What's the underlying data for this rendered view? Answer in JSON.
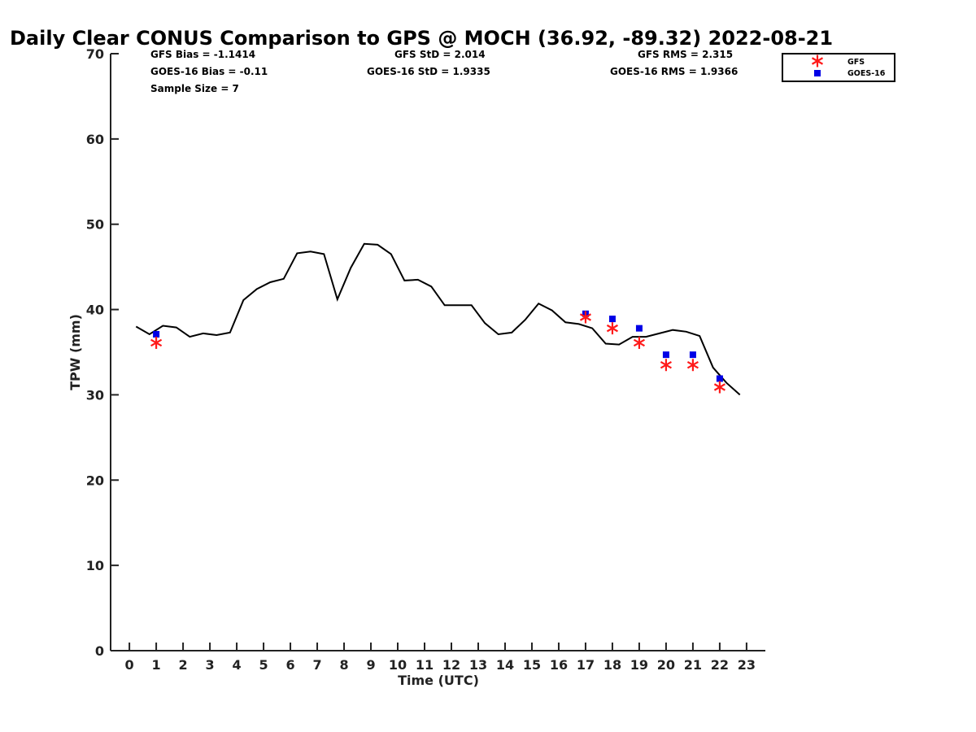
{
  "chart_data": {
    "type": "line",
    "title": "Daily Clear CONUS Comparison to GPS @ MOCH (36.92, -89.32) 2022-08-21",
    "xlabel": "Time (UTC)",
    "ylabel": "TPW (mm)",
    "xlim": [
      -0.7,
      23.7
    ],
    "ylim": [
      0,
      70
    ],
    "xticks": [
      "0",
      "1",
      "2",
      "3",
      "4",
      "5",
      "6",
      "7",
      "8",
      "9",
      "10",
      "11",
      "12",
      "13",
      "14",
      "15",
      "16",
      "17",
      "18",
      "19",
      "20",
      "21",
      "22",
      "23"
    ],
    "yticks": [
      "0",
      "10",
      "20",
      "30",
      "40",
      "50",
      "60",
      "70"
    ],
    "grid": false,
    "legend_position": "top-right",
    "stats": {
      "gfs_bias": "GFS Bias = -1.1414",
      "goes_bias": "GOES-16 Bias = -0.11",
      "sample_size": "Sample Size = 7",
      "gfs_std": "GFS StD = 2.014",
      "goes_std": "GOES-16 StD = 1.9335",
      "gfs_rms": "GFS RMS = 2.315",
      "goes_rms": "GOES-16 RMS = 1.9366"
    },
    "series": [
      {
        "color": "#000000",
        "marker": "line",
        "points": [
          [
            0.25,
            38.0
          ],
          [
            0.75,
            37.1
          ],
          [
            1.25,
            38.1
          ],
          [
            1.75,
            37.9
          ],
          [
            2.25,
            36.8
          ],
          [
            2.75,
            37.2
          ],
          [
            3.25,
            37.0
          ],
          [
            3.75,
            37.3
          ],
          [
            4.25,
            41.1
          ],
          [
            4.75,
            42.4
          ],
          [
            5.25,
            43.2
          ],
          [
            5.75,
            43.6
          ],
          [
            6.25,
            46.6
          ],
          [
            6.75,
            46.8
          ],
          [
            7.25,
            46.5
          ],
          [
            7.75,
            41.2
          ],
          [
            8.25,
            44.9
          ],
          [
            8.75,
            47.7
          ],
          [
            9.25,
            47.6
          ],
          [
            9.75,
            46.5
          ],
          [
            10.25,
            43.4
          ],
          [
            10.75,
            43.5
          ],
          [
            11.25,
            42.7
          ],
          [
            11.75,
            40.5
          ],
          [
            12.25,
            40.5
          ],
          [
            12.75,
            40.5
          ],
          [
            13.25,
            38.4
          ],
          [
            13.75,
            37.1
          ],
          [
            14.25,
            37.3
          ],
          [
            14.75,
            38.8
          ],
          [
            15.25,
            40.7
          ],
          [
            15.75,
            39.9
          ],
          [
            16.25,
            38.5
          ],
          [
            16.75,
            38.3
          ],
          [
            17.25,
            37.8
          ],
          [
            17.75,
            36.0
          ],
          [
            18.25,
            35.9
          ],
          [
            18.75,
            36.8
          ],
          [
            19.25,
            36.8
          ],
          [
            19.75,
            37.2
          ],
          [
            20.25,
            37.6
          ],
          [
            20.75,
            37.4
          ],
          [
            21.25,
            36.9
          ],
          [
            21.75,
            33.2
          ],
          [
            22.25,
            31.4
          ],
          [
            22.75,
            30.0
          ]
        ]
      },
      {
        "name": "GFS",
        "color": "#ff1a1a",
        "marker": "asterisk",
        "points": [
          [
            1,
            36.1
          ],
          [
            17,
            39.1
          ],
          [
            18,
            37.8
          ],
          [
            19,
            36.1
          ],
          [
            20,
            33.5
          ],
          [
            21,
            33.5
          ],
          [
            22,
            30.9
          ]
        ]
      },
      {
        "name": "GOES-16",
        "color": "#0000e6",
        "marker": "square",
        "points": [
          [
            1,
            37.1
          ],
          [
            17,
            39.5
          ],
          [
            18,
            38.9
          ],
          [
            19,
            37.8
          ],
          [
            20,
            34.7
          ],
          [
            21,
            34.7
          ],
          [
            22,
            31.9
          ]
        ]
      }
    ]
  }
}
